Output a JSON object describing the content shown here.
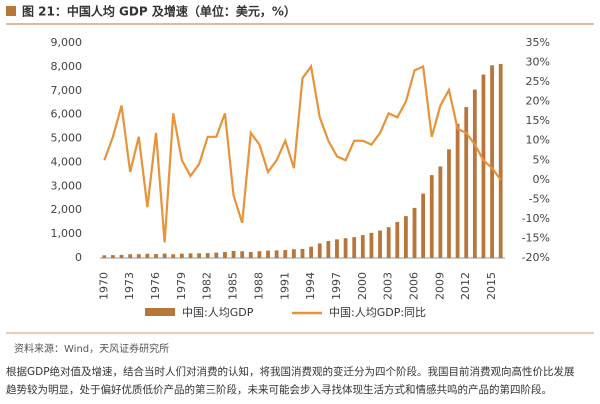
{
  "chart_data": {
    "type": "bar-line",
    "title": "图 21：中国人均 GDP 及增速（单位：美元，%）",
    "categories": [
      "1970",
      null,
      null,
      "1973",
      null,
      null,
      "1976",
      null,
      null,
      "1979",
      null,
      null,
      "1982",
      null,
      null,
      "1985",
      null,
      null,
      "1988",
      null,
      null,
      "1991",
      null,
      null,
      "1994",
      null,
      null,
      "1997",
      null,
      null,
      "2000",
      null,
      null,
      "2003",
      null,
      null,
      "2006",
      null,
      null,
      "2009",
      null,
      null,
      "2012",
      null,
      null,
      "2015",
      null
    ],
    "series": [
      {
        "name": "中国:人均GDP",
        "color": "#b8763a",
        "values": [
          113,
          119,
          132,
          157,
          160,
          178,
          165,
          185,
          156,
          183,
          195,
          197,
          203,
          225,
          250,
          294,
          282,
          252,
          283,
          310,
          318,
          333,
          366,
          377,
          473,
          610,
          709,
          782,
          829,
          873,
          959,
          1053,
          1149,
          1289,
          1509,
          1753,
          2099,
          2694,
          3468,
          3832,
          4550,
          5618,
          6317,
          7051,
          7679,
          8067,
          8123
        ]
      },
      {
        "name": "中国:人均GDP:同比",
        "color": "#e8923a",
        "axis": "y2",
        "values": [
          5,
          11,
          19,
          2,
          11,
          -7,
          12,
          -16,
          17,
          5,
          1,
          4,
          11,
          11,
          17,
          -4,
          -11,
          12,
          9,
          2,
          5,
          10,
          3,
          26,
          29,
          16,
          10,
          6,
          5,
          10,
          10,
          9,
          12,
          17,
          16,
          20,
          28,
          29,
          11,
          19,
          23,
          13,
          12,
          9,
          5,
          3,
          0
        ]
      }
    ],
    "ylim": [
      0,
      9000
    ],
    "yticks": [
      0,
      {
        "value": 1000,
        "label": "1,000"
      },
      {
        "value": 2000,
        "label": "2,000"
      },
      {
        "value": 3000,
        "label": "3,000"
      },
      {
        "value": 4000,
        "label": "4,000"
      },
      {
        "value": 5000,
        "label": "5,000"
      },
      {
        "value": 6000,
        "label": "6,000"
      },
      {
        "value": 7000,
        "label": "7,000"
      },
      {
        "value": 8000,
        "label": "8,000"
      },
      {
        "value": 9000,
        "label": "9,000"
      }
    ],
    "y2lim": [
      -20,
      35
    ],
    "y2ticks": [
      {
        "value": -20,
        "label": "-20%"
      },
      {
        "value": -15,
        "label": "-15%"
      },
      {
        "value": -10,
        "label": "-10%"
      },
      {
        "value": -5,
        "label": "-5%"
      },
      {
        "value": 0,
        "label": "0%"
      },
      {
        "value": 5,
        "label": "5%"
      },
      {
        "value": 10,
        "label": "10%"
      },
      {
        "value": 15,
        "label": "15%"
      },
      {
        "value": 20,
        "label": "20%"
      },
      {
        "value": 25,
        "label": "25%"
      },
      {
        "value": 30,
        "label": "30%"
      },
      {
        "value": 35,
        "label": "35%"
      }
    ],
    "legend": "bottom",
    "source": "资料来源：Wind，天风证券研究所",
    "paragraph": [
      "根据GDP绝对值及增速，结合当时人们对消费的认知，将我国消费观的变迁分为四个阶段。我国目前消费观向高性价比发展",
      "趋势较为明显，处于偏好优质低价产品的第三阶段，未来可能会步入寻找体现生活方式和情感共鸣的产品的第四阶段。"
    ]
  }
}
